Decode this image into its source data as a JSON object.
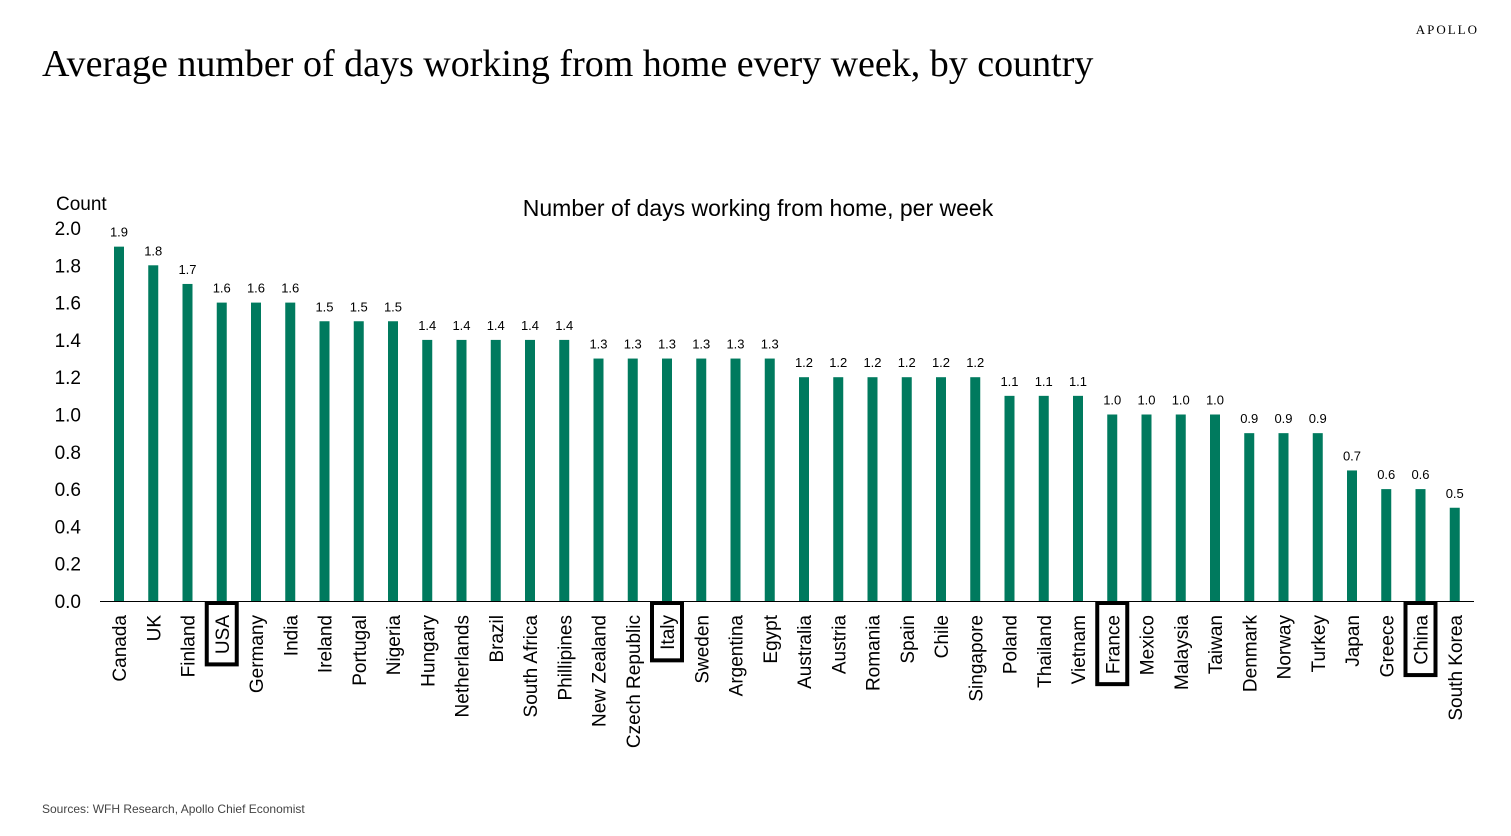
{
  "header": {
    "brand": "APOLLO",
    "title": "Average number of days working from home every week, by country"
  },
  "footer": {
    "source": "Sources: WFH Research, Apollo Chief Economist"
  },
  "colors": {
    "bar": "#007A5E",
    "highlight_box": "#000000"
  },
  "chart_data": {
    "type": "bar",
    "title": "Number of days working from home, per week",
    "ylabel": "Count",
    "xlabel": "",
    "ylim": [
      0,
      2.0
    ],
    "yticks": [
      "0.0",
      "0.2",
      "0.4",
      "0.6",
      "0.8",
      "1.0",
      "1.2",
      "1.4",
      "1.6",
      "1.8",
      "2.0"
    ],
    "grid": false,
    "categories": [
      "Canada",
      "UK",
      "Finland",
      "USA",
      "Germany",
      "India",
      "Ireland",
      "Portugal",
      "Nigeria",
      "Hungary",
      "Netherlands",
      "Brazil",
      "South Africa",
      "Phillipines",
      "New Zealand",
      "Czech Republic",
      "Italy",
      "Sweden",
      "Argentina",
      "Egypt",
      "Australia",
      "Austria",
      "Romania",
      "Spain",
      "Chile",
      "Singapore",
      "Poland",
      "Thailand",
      "Vietnam",
      "France",
      "Mexico",
      "Malaysia",
      "Taiwan",
      "Denmark",
      "Norway",
      "Turkey",
      "Japan",
      "Greece",
      "China",
      "South Korea"
    ],
    "values": [
      1.9,
      1.8,
      1.7,
      1.6,
      1.6,
      1.6,
      1.5,
      1.5,
      1.5,
      1.4,
      1.4,
      1.4,
      1.4,
      1.4,
      1.3,
      1.3,
      1.3,
      1.3,
      1.3,
      1.3,
      1.2,
      1.2,
      1.2,
      1.2,
      1.2,
      1.2,
      1.1,
      1.1,
      1.1,
      1.0,
      1.0,
      1.0,
      1.0,
      0.9,
      0.9,
      0.9,
      0.7,
      0.6,
      0.6,
      0.5
    ],
    "data_labels": [
      "1.9",
      "1.8",
      "1.7",
      "1.6",
      "1.6",
      "1.6",
      "1.5",
      "1.5",
      "1.5",
      "1.4",
      "1.4",
      "1.4",
      "1.4",
      "1.4",
      "1.3",
      "1.3",
      "1.3",
      "1.3",
      "1.3",
      "1.3",
      "1.2",
      "1.2",
      "1.2",
      "1.2",
      "1.2",
      "1.2",
      "1.1",
      "1.1",
      "1.1",
      "1.0",
      "1.0",
      "1.0",
      "1.0",
      "0.9",
      "0.9",
      "0.9",
      "0.7",
      "0.6",
      "0.6",
      "0.5"
    ],
    "highlighted": [
      "USA",
      "Italy",
      "France",
      "China"
    ]
  }
}
